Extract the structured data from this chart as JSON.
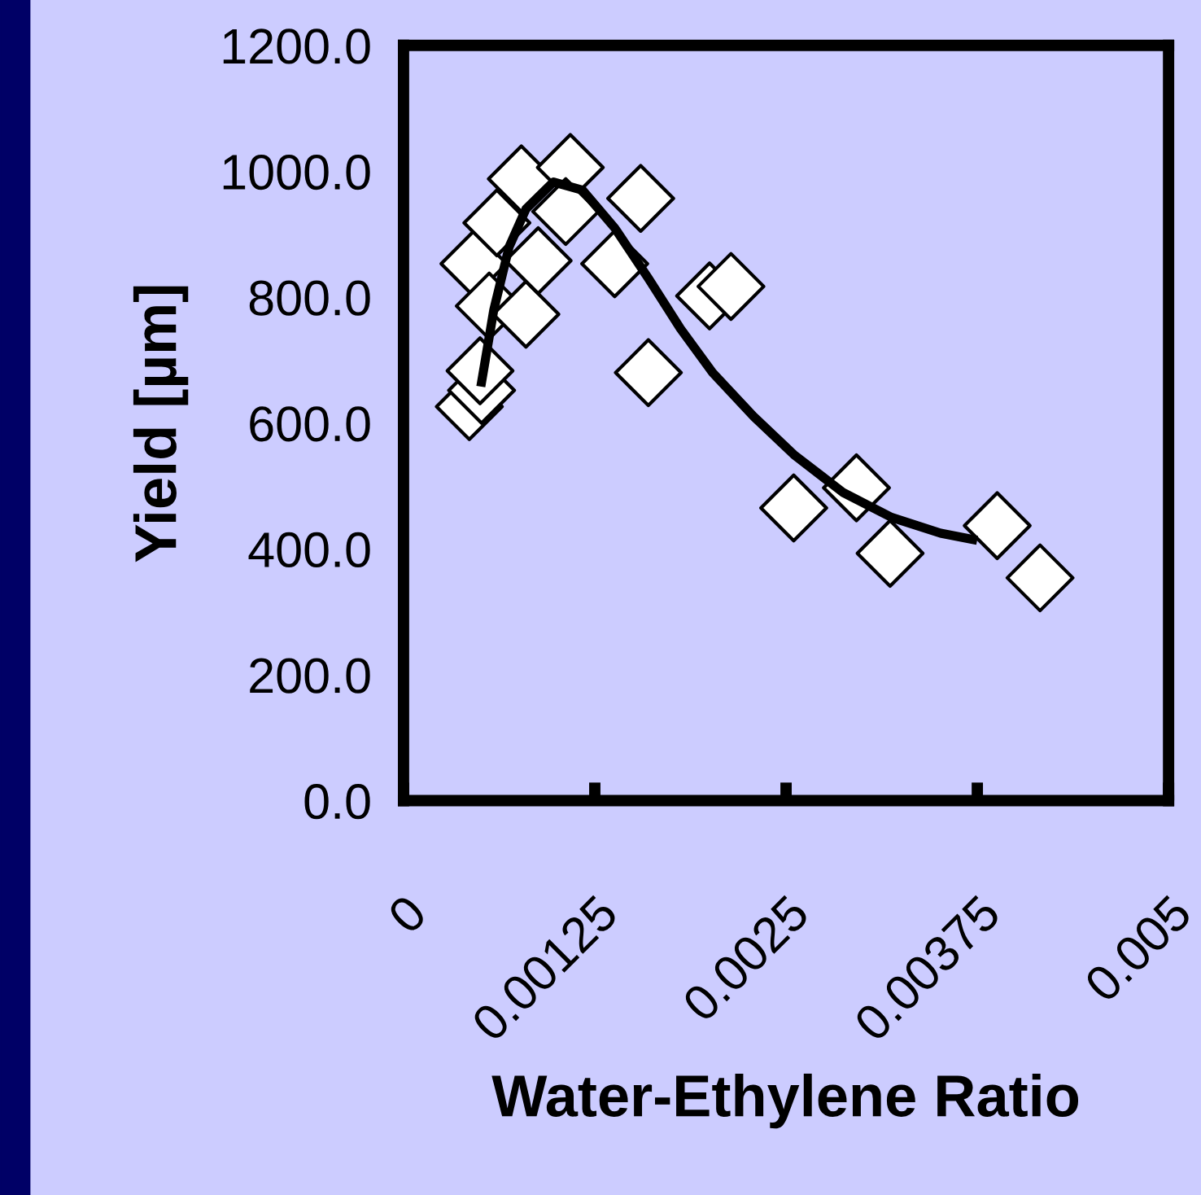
{
  "chart_data": {
    "type": "scatter",
    "xlabel": "Water-Ethylene Ratio",
    "ylabel": "Yield [µm]",
    "xlim": [
      0,
      0.005
    ],
    "xticks": [
      0,
      0.00125,
      0.0025,
      0.00375,
      0.005
    ],
    "ylim": [
      0,
      1200
    ],
    "yticks": [
      {
        "value": 0,
        "label": "0.0"
      },
      {
        "value": 200,
        "label": "200.0"
      },
      {
        "value": 400,
        "label": "400.0"
      },
      {
        "value": 600,
        "label": "600.0"
      },
      {
        "value": 800,
        "label": "800.0"
      },
      {
        "value": 1000,
        "label": "1000.0"
      },
      {
        "value": 1200,
        "label": "1200.0"
      }
    ],
    "grid": false,
    "legend": false,
    "series": [
      {
        "marker": "diamond",
        "color": "#ffffff",
        "x": [
          0.00043,
          0.00051,
          0.0005,
          0.00046,
          0.00056,
          0.00061,
          0.0008,
          0.00077,
          0.00088,
          0.00109,
          0.00106,
          0.00138,
          0.00155,
          0.0016,
          0.002,
          0.00214,
          0.00255,
          0.00296,
          0.00318,
          0.00388,
          0.00416
        ],
        "values": [
          626,
          652,
          683,
          853,
          786,
          918,
          773,
          988,
          858,
          1006,
          936,
          853,
          957,
          680,
          802,
          817,
          465,
          497,
          393,
          437,
          354
        ]
      },
      {
        "type": "line",
        "marker": "none",
        "line_style": "solid",
        "color": "#000000",
        "x": [
          0.00051,
          0.00059,
          0.00069,
          0.0008,
          0.00098,
          0.00117,
          0.00138,
          0.0016,
          0.00181,
          0.00202,
          0.00229,
          0.00255,
          0.00287,
          0.00319,
          0.00351,
          0.00372
        ],
        "values": [
          665,
          780,
          880,
          940,
          983,
          970,
          910,
          830,
          750,
          680,
          610,
          550,
          490,
          450,
          425,
          415
        ]
      }
    ]
  }
}
